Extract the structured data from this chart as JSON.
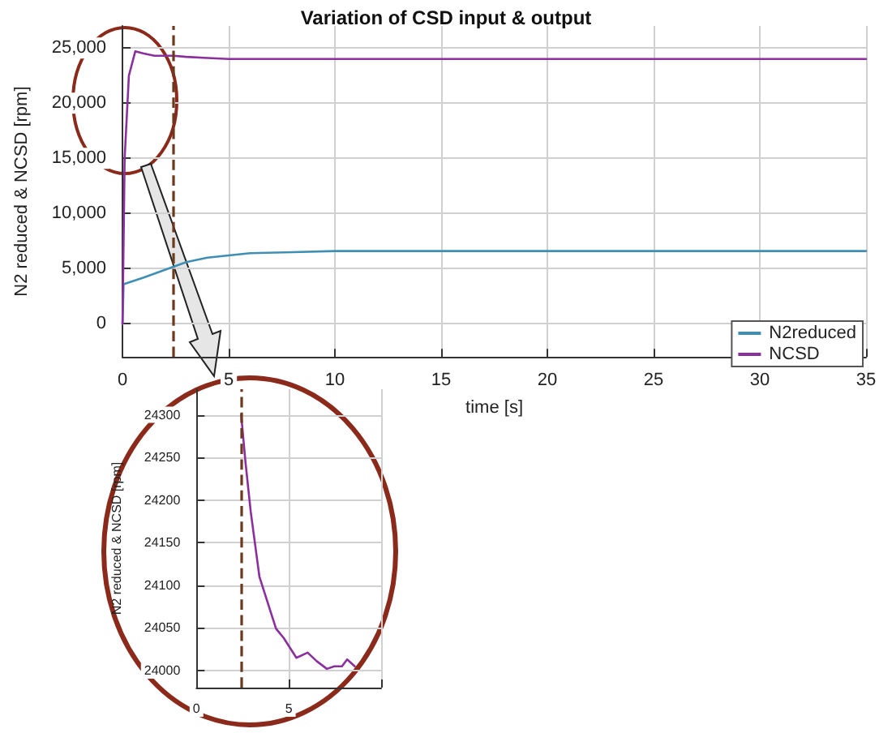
{
  "chart_data": [
    {
      "type": "line",
      "title": "Variation of CSD input & output",
      "xlabel": "time [s]",
      "ylabel": "N2 reduced & NCSD [rpm]",
      "xlim": [
        0,
        35
      ],
      "xticks": [
        0,
        5,
        10,
        15,
        20,
        25,
        30,
        35
      ],
      "ylim": [
        -3000,
        27000
      ],
      "yticks": [
        {
          "value": 0,
          "label": "0"
        },
        {
          "value": 5000,
          "label": "5,000"
        },
        {
          "value": 10000,
          "label": "10,000"
        },
        {
          "value": 15000,
          "label": "15,000"
        },
        {
          "value": 20000,
          "label": "20,000"
        },
        {
          "value": 25000,
          "label": "25,000"
        }
      ],
      "grid": true,
      "legend": "bottom right",
      "marker": "none",
      "line_style": "solid",
      "series": [
        {
          "name": "N2reduced",
          "color": "#3f8fb5",
          "x": [
            0,
            0.05,
            1,
            2,
            3,
            4,
            5,
            6,
            8,
            10,
            15,
            35
          ],
          "values": [
            0,
            3600,
            4200,
            4900,
            5600,
            6000,
            6200,
            6400,
            6500,
            6600,
            6600,
            6600
          ]
        },
        {
          "name": "NCSD",
          "color": "#8b2f9e",
          "x": [
            0,
            0.1,
            0.3,
            0.6,
            1,
            1.5,
            2.4,
            3,
            4,
            5,
            7,
            35
          ],
          "values": [
            0,
            15000,
            22500,
            24700,
            24500,
            24300,
            24300,
            24200,
            24100,
            24000,
            24000,
            24000
          ]
        }
      ],
      "ref_lines": [
        {
          "axis": "x",
          "value": 2.4,
          "color": "#6b3a1e",
          "line_style": "dashed"
        }
      ]
    },
    {
      "type": "line",
      "ylabel": "N2 reduced & NCSD [rpm]",
      "xlim": [
        0,
        10
      ],
      "xticks": [
        0,
        5,
        {
          "value": 10,
          "label": null
        }
      ],
      "ylim": [
        23980,
        24330
      ],
      "yticks": [
        24000,
        24050,
        24100,
        24150,
        24200,
        24250,
        24300
      ],
      "grid": true,
      "marker": "none",
      "line_style": "solid",
      "series": [
        {
          "color": "#8b2f9e",
          "x": [
            2.42,
            2.66,
            2.94,
            3.41,
            4.31,
            4.73,
            5.41,
            6.02,
            6.51,
            7.06,
            7.47,
            7.88,
            8.16,
            8.57
          ],
          "values": [
            24300,
            24243,
            24186,
            24110,
            24049,
            24038,
            24015,
            24021,
            24011,
            24002,
            24005,
            24005,
            24013,
            24005
          ]
        }
      ],
      "ref_lines": [
        {
          "axis": "x",
          "value": 2.4,
          "color": "#6b3a1e",
          "line_style": "dashed"
        }
      ]
    }
  ]
}
